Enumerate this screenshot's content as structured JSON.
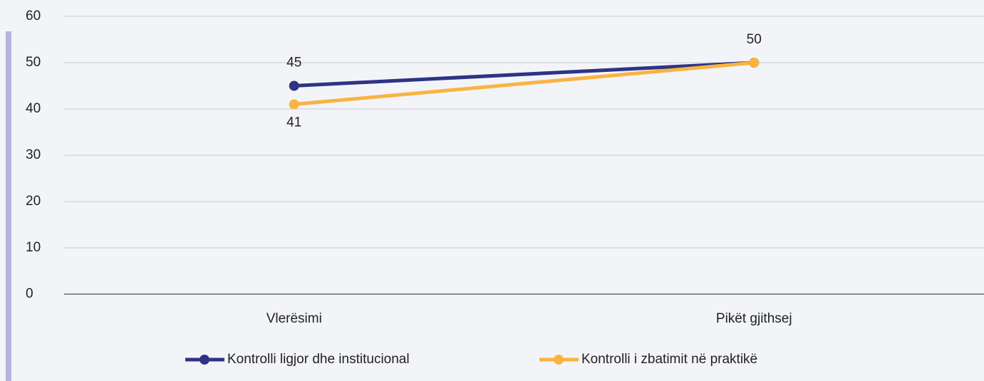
{
  "chart_data": {
    "type": "line",
    "categories": [
      "Vlerësimi",
      "Pikët gjithsej"
    ],
    "series": [
      {
        "name": "Kontrolli ligjor dhe institucional",
        "color": "#2e3383",
        "values": [
          45,
          50
        ]
      },
      {
        "name": "Kontrolli i zbatimit në praktikë",
        "color": "#f9b342",
        "values": [
          41,
          50
        ]
      }
    ],
    "ylim": [
      0,
      60
    ],
    "yticks": [
      0,
      10,
      20,
      30,
      40,
      50,
      60
    ],
    "grid": true,
    "legend": "bottom"
  }
}
